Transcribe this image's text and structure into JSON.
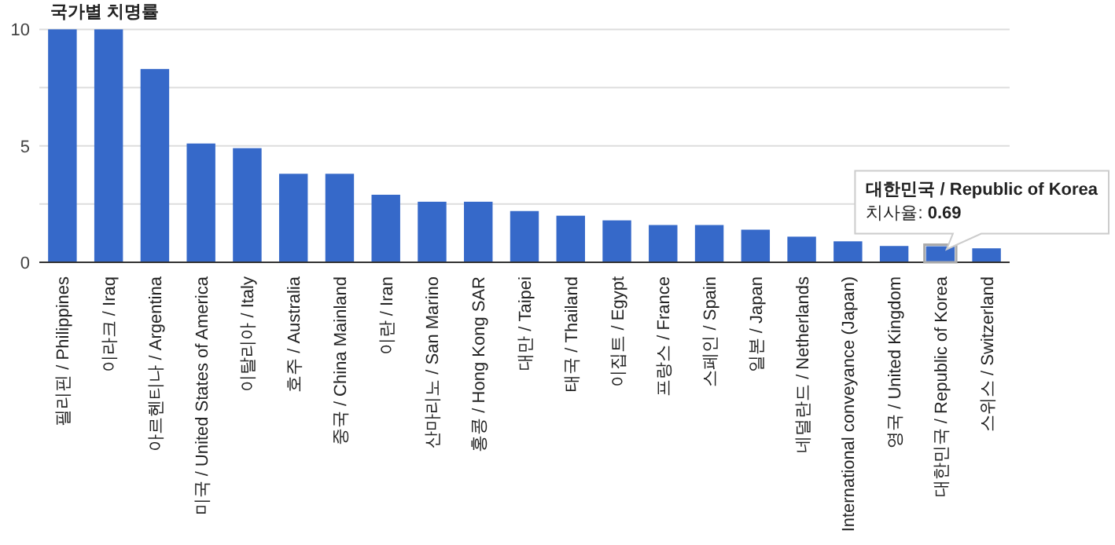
{
  "chart_data": {
    "type": "bar",
    "title": "국가별 치명률",
    "categories": [
      "필리핀 / Philippines",
      "이라크 / Iraq",
      "아르헨티나 / Argentina",
      "미국 / United States of America",
      "이탈리아 / Italy",
      "호주 / Australia",
      "중국 / China Mainland",
      "이란 / Iran",
      "산마리노 / San Marino",
      "홍콩 / Hong Kong SAR",
      "대만 / Taipei",
      "태국 / Thailand",
      "이집트 / Egypt",
      "프랑스 / France",
      "스페인 / Spain",
      "일본 / Japan",
      "네덜란드 / Netherlands",
      "International conveyance (Japan)",
      "영국 / United Kingdom",
      "대한민국 / Republic of Korea",
      "스위스 / Switzerland"
    ],
    "values": [
      10,
      10,
      8.3,
      5.1,
      4.9,
      3.8,
      3.8,
      2.9,
      2.6,
      2.6,
      2.2,
      2.0,
      1.8,
      1.6,
      1.6,
      1.4,
      1.1,
      0.9,
      0.7,
      0.69,
      0.6
    ],
    "color": "#3669c9",
    "ylim": [
      0,
      10
    ],
    "yticks": [
      0,
      {
        "value": 2.5,
        "label": null
      },
      5,
      {
        "value": 7.5,
        "label": null
      },
      10
    ],
    "grid": "y",
    "annotations": [
      {
        "text": "대한민국 / Republic of Korea\n치사율: 0.69",
        "x": "대한민국 / Republic of Korea",
        "y": 0.69
      }
    ]
  }
}
